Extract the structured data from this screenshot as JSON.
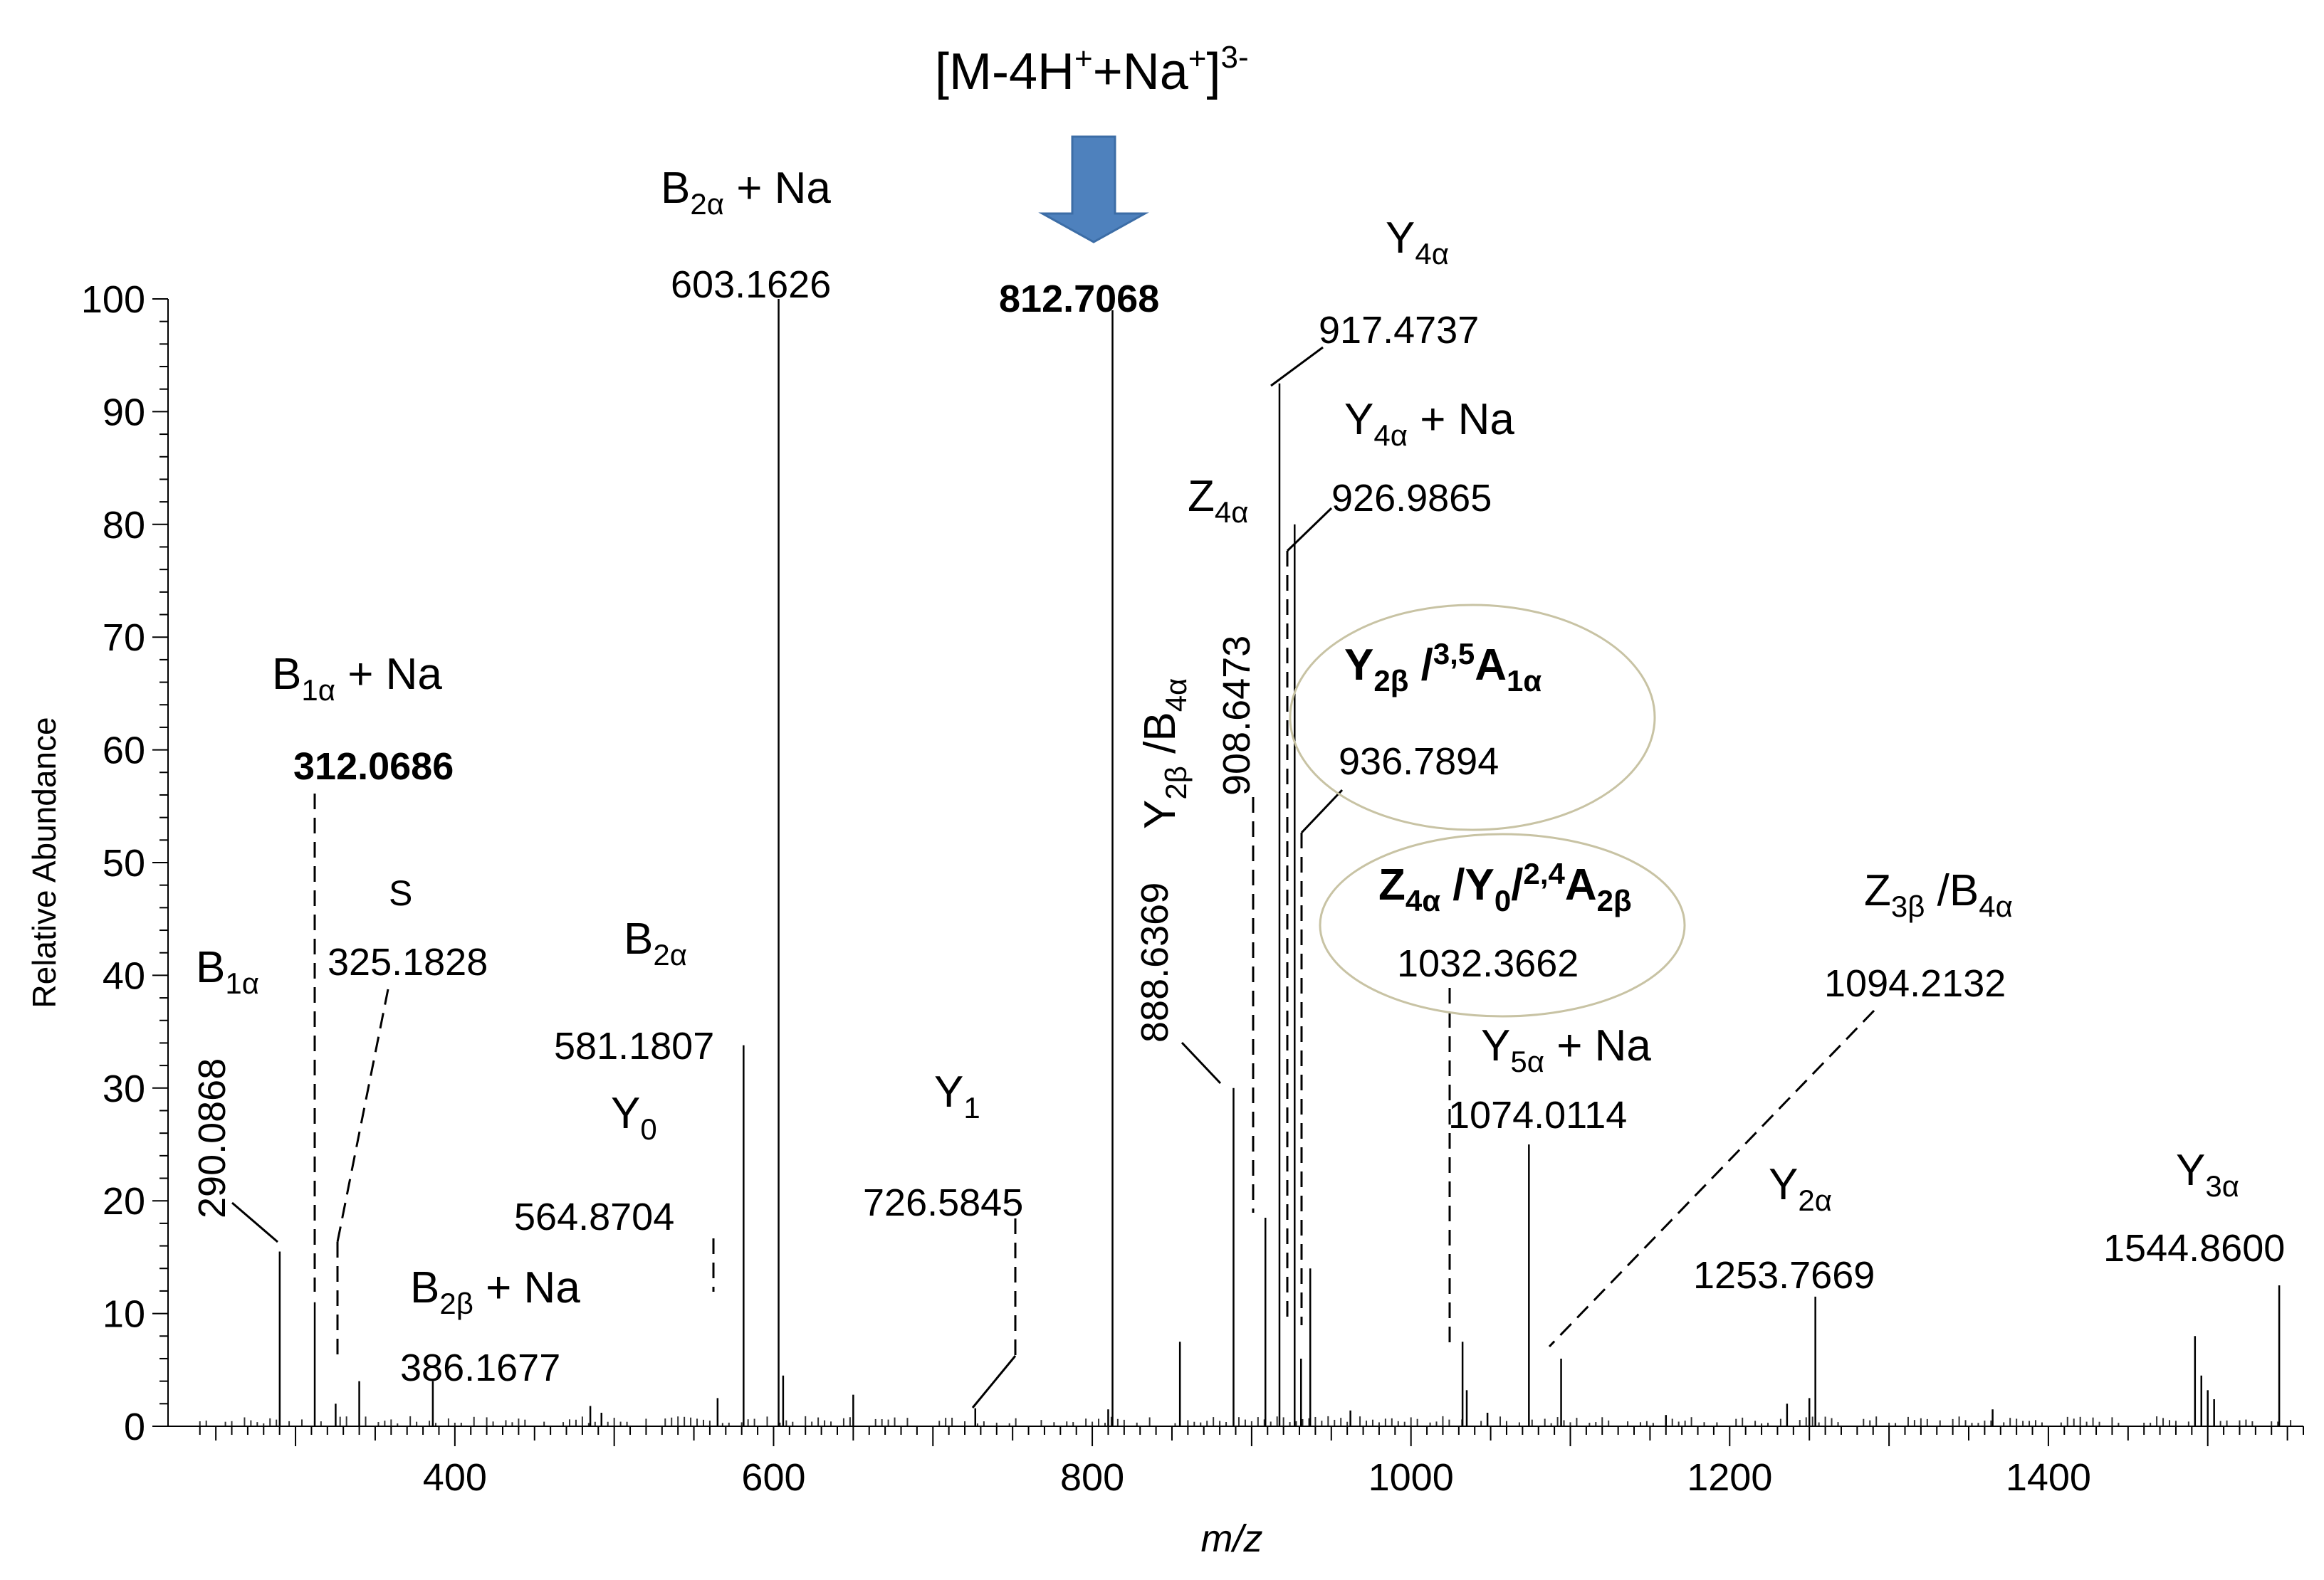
{
  "chart_data": {
    "type": "line",
    "title": "",
    "xlabel": "m/z",
    "ylabel": "Relative Abundance",
    "xlim": [
      220,
      1560
    ],
    "ylim": [
      0,
      100
    ],
    "xticks": [
      400,
      600,
      800,
      1000,
      1200,
      1400
    ],
    "yticks": [
      0,
      10,
      20,
      30,
      40,
      50,
      60,
      70,
      80,
      90,
      100
    ],
    "grid": false,
    "precursor_label": {
      "base": "[M-4H",
      "sup1": "+",
      "mid": "+Na",
      "sup2": "+",
      "end": "]",
      "sup3": "3-"
    },
    "precursor_mz": 812.7068,
    "peaks": [
      {
        "x": 290.0868,
        "y": 15.5
      },
      {
        "x": 312.0686,
        "y": 11
      },
      {
        "x": 325.1828,
        "y": 2
      },
      {
        "x": 340.0,
        "y": 4
      },
      {
        "x": 386.1677,
        "y": 4
      },
      {
        "x": 485.0,
        "y": 1.8
      },
      {
        "x": 492.0,
        "y": 1.2
      },
      {
        "x": 564.8704,
        "y": 2.5
      },
      {
        "x": 581.1807,
        "y": 33.8
      },
      {
        "x": 603.1626,
        "y": 100
      },
      {
        "x": 606.0,
        "y": 4.5
      },
      {
        "x": 650.0,
        "y": 2.8
      },
      {
        "x": 726.5845,
        "y": 1.6
      },
      {
        "x": 812.7068,
        "y": 99
      },
      {
        "x": 810.0,
        "y": 1.5
      },
      {
        "x": 855.0,
        "y": 7.5
      },
      {
        "x": 888.6369,
        "y": 30
      },
      {
        "x": 908.6473,
        "y": 18.5
      },
      {
        "x": 917.4737,
        "y": 92.5
      },
      {
        "x": 926.9865,
        "y": 80
      },
      {
        "x": 931.0,
        "y": 6
      },
      {
        "x": 936.7894,
        "y": 14
      },
      {
        "x": 962.0,
        "y": 1.4
      },
      {
        "x": 1032.3662,
        "y": 7.5
      },
      {
        "x": 1035.0,
        "y": 3.2
      },
      {
        "x": 1048.0,
        "y": 1.2
      },
      {
        "x": 1074.0114,
        "y": 25
      },
      {
        "x": 1094.2132,
        "y": 6
      },
      {
        "x": 1160.0,
        "y": 1.0
      },
      {
        "x": 1236.0,
        "y": 2.0
      },
      {
        "x": 1250.0,
        "y": 2.5
      },
      {
        "x": 1253.7669,
        "y": 11.5
      },
      {
        "x": 1365.0,
        "y": 1.5
      },
      {
        "x": 1492.0,
        "y": 8
      },
      {
        "x": 1496.0,
        "y": 4.5
      },
      {
        "x": 1500.0,
        "y": 3.2
      },
      {
        "x": 1504.0,
        "y": 2.4
      },
      {
        "x": 1544.86,
        "y": 12.5
      }
    ]
  }
}
